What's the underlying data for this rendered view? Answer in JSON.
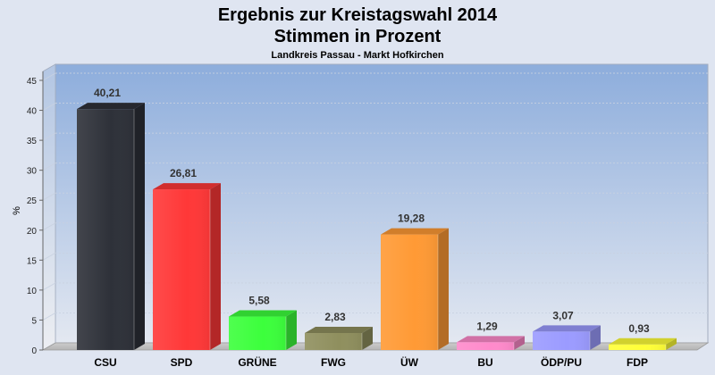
{
  "chart_data": {
    "type": "bar",
    "title": "Ergebnis zur Kreistagswahl 2014",
    "title_line2": "Stimmen in Prozent",
    "subtitle": "Landkreis Passau - Markt Hofkirchen",
    "ylabel": "%",
    "ylim": [
      0,
      45
    ],
    "yticks": [
      0,
      5,
      10,
      15,
      20,
      25,
      30,
      35,
      40,
      45
    ],
    "grid": true,
    "categories": [
      "CSU",
      "SPD",
      "GRÜNE",
      "FWG",
      "ÜW",
      "BU",
      "ÖDP/PU",
      "FDP"
    ],
    "values": [
      40.21,
      26.81,
      5.58,
      2.83,
      19.28,
      1.29,
      3.07,
      0.93
    ],
    "value_labels": [
      "40,21",
      "26,81",
      "5,58",
      "2,83",
      "19,28",
      "1,29",
      "3,07",
      "0,93"
    ],
    "colors": [
      "#2e3139",
      "#ff3838",
      "#3cff3c",
      "#8f8f5e",
      "#ff9a35",
      "#ff8acb",
      "#9b9bff",
      "#ffff38"
    ]
  }
}
